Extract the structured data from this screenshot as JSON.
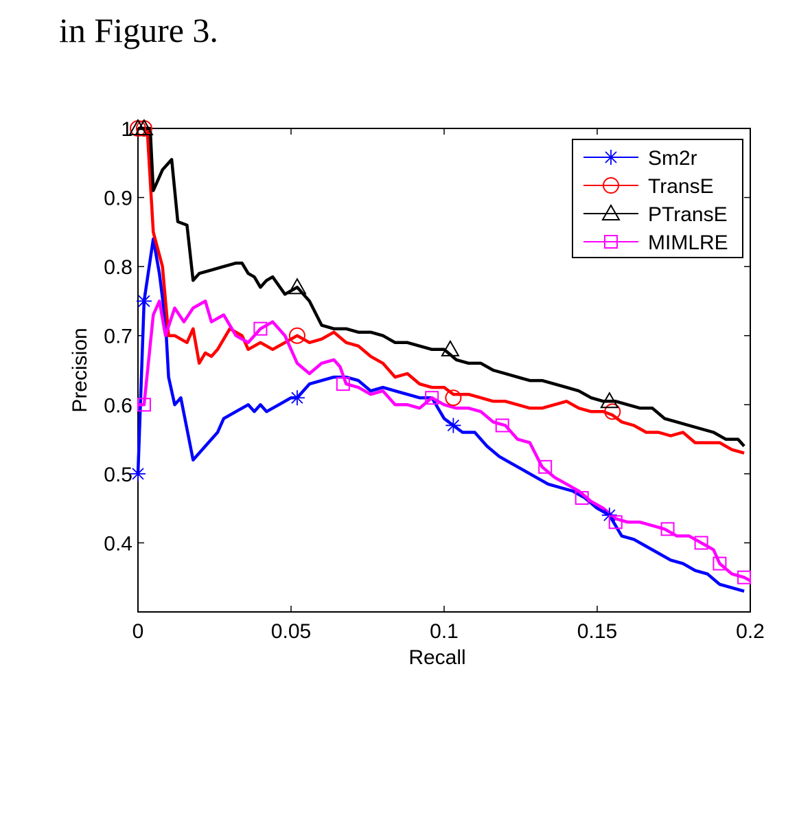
{
  "page": {
    "caption_above": "in Figure 3."
  },
  "chart_data": {
    "type": "line",
    "xlabel": "Recall",
    "ylabel": "Precision",
    "xlim": [
      0,
      0.2
    ],
    "ylim": [
      0.3,
      1.0
    ],
    "xticks": [
      0,
      0.05,
      0.1,
      0.15,
      0.2
    ],
    "xtick_labels": [
      "0",
      "0.05",
      "0.1",
      "0.15",
      "0.2"
    ],
    "yticks": [
      0.4,
      0.5,
      0.6,
      0.7,
      0.8,
      0.9,
      1.0
    ],
    "ytick_labels": [
      "0.4",
      "0.5",
      "0.6",
      "0.7",
      "0.8",
      "0.9",
      "1"
    ],
    "grid": false,
    "legend_position": "top-right",
    "series": [
      {
        "name": "Sm2r",
        "color": "#0000ff",
        "marker": "asterisk",
        "points": [
          [
            0,
            0.5
          ],
          [
            0.002,
            0.75
          ],
          [
            0.005,
            0.84
          ],
          [
            0.007,
            0.79
          ],
          [
            0.009,
            0.72
          ],
          [
            0.01,
            0.64
          ],
          [
            0.012,
            0.6
          ],
          [
            0.014,
            0.61
          ],
          [
            0.018,
            0.52
          ],
          [
            0.022,
            0.54
          ],
          [
            0.026,
            0.56
          ],
          [
            0.028,
            0.58
          ],
          [
            0.032,
            0.59
          ],
          [
            0.036,
            0.6
          ],
          [
            0.038,
            0.59
          ],
          [
            0.04,
            0.6
          ],
          [
            0.042,
            0.59
          ],
          [
            0.046,
            0.6
          ],
          [
            0.05,
            0.61
          ],
          [
            0.052,
            0.61
          ],
          [
            0.056,
            0.63
          ],
          [
            0.06,
            0.635
          ],
          [
            0.064,
            0.64
          ],
          [
            0.068,
            0.64
          ],
          [
            0.072,
            0.635
          ],
          [
            0.076,
            0.62
          ],
          [
            0.08,
            0.625
          ],
          [
            0.084,
            0.62
          ],
          [
            0.088,
            0.615
          ],
          [
            0.092,
            0.61
          ],
          [
            0.096,
            0.61
          ],
          [
            0.1,
            0.58
          ],
          [
            0.103,
            0.57
          ],
          [
            0.106,
            0.56
          ],
          [
            0.11,
            0.56
          ],
          [
            0.114,
            0.54
          ],
          [
            0.118,
            0.525
          ],
          [
            0.122,
            0.515
          ],
          [
            0.126,
            0.505
          ],
          [
            0.13,
            0.495
          ],
          [
            0.134,
            0.485
          ],
          [
            0.138,
            0.48
          ],
          [
            0.142,
            0.475
          ],
          [
            0.146,
            0.465
          ],
          [
            0.15,
            0.45
          ],
          [
            0.154,
            0.44
          ],
          [
            0.158,
            0.41
          ],
          [
            0.162,
            0.405
          ],
          [
            0.166,
            0.395
          ],
          [
            0.17,
            0.385
          ],
          [
            0.174,
            0.375
          ],
          [
            0.178,
            0.37
          ],
          [
            0.182,
            0.36
          ],
          [
            0.186,
            0.355
          ],
          [
            0.19,
            0.34
          ],
          [
            0.194,
            0.335
          ],
          [
            0.198,
            0.33
          ]
        ],
        "marker_points": [
          [
            0,
            0.5
          ],
          [
            0.002,
            0.75
          ],
          [
            0.052,
            0.61
          ],
          [
            0.103,
            0.57
          ],
          [
            0.154,
            0.44
          ]
        ]
      },
      {
        "name": "TransE",
        "color": "#ff0000",
        "marker": "circle",
        "points": [
          [
            0,
            1.0
          ],
          [
            0.003,
            1.0
          ],
          [
            0.005,
            0.85
          ],
          [
            0.008,
            0.8
          ],
          [
            0.01,
            0.7
          ],
          [
            0.012,
            0.7
          ],
          [
            0.016,
            0.69
          ],
          [
            0.018,
            0.71
          ],
          [
            0.02,
            0.66
          ],
          [
            0.022,
            0.675
          ],
          [
            0.024,
            0.67
          ],
          [
            0.026,
            0.68
          ],
          [
            0.03,
            0.71
          ],
          [
            0.034,
            0.7
          ],
          [
            0.036,
            0.68
          ],
          [
            0.04,
            0.69
          ],
          [
            0.044,
            0.68
          ],
          [
            0.048,
            0.69
          ],
          [
            0.052,
            0.7
          ],
          [
            0.056,
            0.69
          ],
          [
            0.06,
            0.695
          ],
          [
            0.064,
            0.705
          ],
          [
            0.068,
            0.69
          ],
          [
            0.072,
            0.685
          ],
          [
            0.076,
            0.67
          ],
          [
            0.08,
            0.66
          ],
          [
            0.084,
            0.64
          ],
          [
            0.088,
            0.645
          ],
          [
            0.092,
            0.63
          ],
          [
            0.096,
            0.625
          ],
          [
            0.1,
            0.625
          ],
          [
            0.103,
            0.615
          ],
          [
            0.108,
            0.615
          ],
          [
            0.112,
            0.61
          ],
          [
            0.116,
            0.605
          ],
          [
            0.12,
            0.605
          ],
          [
            0.124,
            0.6
          ],
          [
            0.128,
            0.595
          ],
          [
            0.132,
            0.595
          ],
          [
            0.136,
            0.6
          ],
          [
            0.14,
            0.605
          ],
          [
            0.144,
            0.595
          ],
          [
            0.148,
            0.59
          ],
          [
            0.152,
            0.59
          ],
          [
            0.155,
            0.585
          ],
          [
            0.158,
            0.575
          ],
          [
            0.162,
            0.57
          ],
          [
            0.166,
            0.56
          ],
          [
            0.17,
            0.56
          ],
          [
            0.174,
            0.555
          ],
          [
            0.178,
            0.56
          ],
          [
            0.182,
            0.545
          ],
          [
            0.186,
            0.545
          ],
          [
            0.19,
            0.545
          ],
          [
            0.194,
            0.535
          ],
          [
            0.198,
            0.53
          ]
        ],
        "marker_points": [
          [
            0,
            1.0
          ],
          [
            0.002,
            1.0
          ],
          [
            0.052,
            0.7
          ],
          [
            0.103,
            0.61
          ],
          [
            0.155,
            0.59
          ]
        ]
      },
      {
        "name": "PTransE",
        "color": "#000000",
        "marker": "triangle",
        "points": [
          [
            0,
            1.0
          ],
          [
            0.004,
            1.0
          ],
          [
            0.005,
            0.91
          ],
          [
            0.008,
            0.94
          ],
          [
            0.011,
            0.955
          ],
          [
            0.013,
            0.865
          ],
          [
            0.016,
            0.86
          ],
          [
            0.018,
            0.78
          ],
          [
            0.02,
            0.79
          ],
          [
            0.024,
            0.795
          ],
          [
            0.028,
            0.8
          ],
          [
            0.032,
            0.805
          ],
          [
            0.034,
            0.805
          ],
          [
            0.036,
            0.79
          ],
          [
            0.038,
            0.785
          ],
          [
            0.04,
            0.77
          ],
          [
            0.042,
            0.78
          ],
          [
            0.044,
            0.785
          ],
          [
            0.048,
            0.76
          ],
          [
            0.052,
            0.77
          ],
          [
            0.056,
            0.75
          ],
          [
            0.06,
            0.715
          ],
          [
            0.064,
            0.71
          ],
          [
            0.068,
            0.71
          ],
          [
            0.072,
            0.705
          ],
          [
            0.076,
            0.705
          ],
          [
            0.08,
            0.7
          ],
          [
            0.084,
            0.69
          ],
          [
            0.088,
            0.69
          ],
          [
            0.092,
            0.685
          ],
          [
            0.096,
            0.68
          ],
          [
            0.1,
            0.68
          ],
          [
            0.104,
            0.665
          ],
          [
            0.108,
            0.66
          ],
          [
            0.112,
            0.66
          ],
          [
            0.116,
            0.65
          ],
          [
            0.12,
            0.645
          ],
          [
            0.124,
            0.64
          ],
          [
            0.128,
            0.635
          ],
          [
            0.132,
            0.635
          ],
          [
            0.136,
            0.63
          ],
          [
            0.14,
            0.625
          ],
          [
            0.144,
            0.62
          ],
          [
            0.148,
            0.61
          ],
          [
            0.152,
            0.605
          ],
          [
            0.156,
            0.605
          ],
          [
            0.16,
            0.6
          ],
          [
            0.164,
            0.595
          ],
          [
            0.168,
            0.595
          ],
          [
            0.172,
            0.58
          ],
          [
            0.176,
            0.575
          ],
          [
            0.18,
            0.57
          ],
          [
            0.184,
            0.565
          ],
          [
            0.188,
            0.56
          ],
          [
            0.192,
            0.55
          ],
          [
            0.196,
            0.55
          ],
          [
            0.198,
            0.54
          ]
        ],
        "marker_points": [
          [
            0,
            1.0
          ],
          [
            0.002,
            1.0
          ],
          [
            0.052,
            0.77
          ],
          [
            0.102,
            0.68
          ],
          [
            0.154,
            0.605
          ]
        ]
      },
      {
        "name": "MIMLRE",
        "color": "#ff00ff",
        "marker": "square",
        "points": [
          [
            0,
            0.6
          ],
          [
            0.002,
            0.6
          ],
          [
            0.005,
            0.73
          ],
          [
            0.007,
            0.75
          ],
          [
            0.009,
            0.7
          ],
          [
            0.012,
            0.74
          ],
          [
            0.015,
            0.72
          ],
          [
            0.018,
            0.74
          ],
          [
            0.022,
            0.75
          ],
          [
            0.024,
            0.72
          ],
          [
            0.028,
            0.73
          ],
          [
            0.032,
            0.7
          ],
          [
            0.036,
            0.69
          ],
          [
            0.04,
            0.71
          ],
          [
            0.044,
            0.72
          ],
          [
            0.048,
            0.7
          ],
          [
            0.052,
            0.66
          ],
          [
            0.056,
            0.645
          ],
          [
            0.06,
            0.66
          ],
          [
            0.064,
            0.665
          ],
          [
            0.066,
            0.655
          ],
          [
            0.068,
            0.63
          ],
          [
            0.072,
            0.625
          ],
          [
            0.076,
            0.615
          ],
          [
            0.08,
            0.62
          ],
          [
            0.084,
            0.6
          ],
          [
            0.088,
            0.6
          ],
          [
            0.092,
            0.595
          ],
          [
            0.096,
            0.61
          ],
          [
            0.1,
            0.6
          ],
          [
            0.104,
            0.595
          ],
          [
            0.108,
            0.595
          ],
          [
            0.112,
            0.59
          ],
          [
            0.116,
            0.575
          ],
          [
            0.12,
            0.57
          ],
          [
            0.124,
            0.55
          ],
          [
            0.128,
            0.545
          ],
          [
            0.132,
            0.51
          ],
          [
            0.136,
            0.495
          ],
          [
            0.14,
            0.485
          ],
          [
            0.144,
            0.475
          ],
          [
            0.148,
            0.46
          ],
          [
            0.152,
            0.45
          ],
          [
            0.156,
            0.435
          ],
          [
            0.16,
            0.43
          ],
          [
            0.164,
            0.43
          ],
          [
            0.168,
            0.425
          ],
          [
            0.172,
            0.42
          ],
          [
            0.176,
            0.41
          ],
          [
            0.18,
            0.41
          ],
          [
            0.184,
            0.4
          ],
          [
            0.188,
            0.39
          ],
          [
            0.19,
            0.37
          ],
          [
            0.194,
            0.355
          ],
          [
            0.198,
            0.35
          ],
          [
            0.2,
            0.345
          ]
        ],
        "marker_points": [
          [
            0.002,
            0.6
          ],
          [
            0.04,
            0.71
          ],
          [
            0.067,
            0.63
          ],
          [
            0.096,
            0.61
          ],
          [
            0.119,
            0.57
          ],
          [
            0.133,
            0.51
          ],
          [
            0.145,
            0.465
          ],
          [
            0.156,
            0.43
          ],
          [
            0.173,
            0.42
          ],
          [
            0.184,
            0.4
          ],
          [
            0.19,
            0.37
          ],
          [
            0.198,
            0.35
          ]
        ]
      }
    ]
  }
}
